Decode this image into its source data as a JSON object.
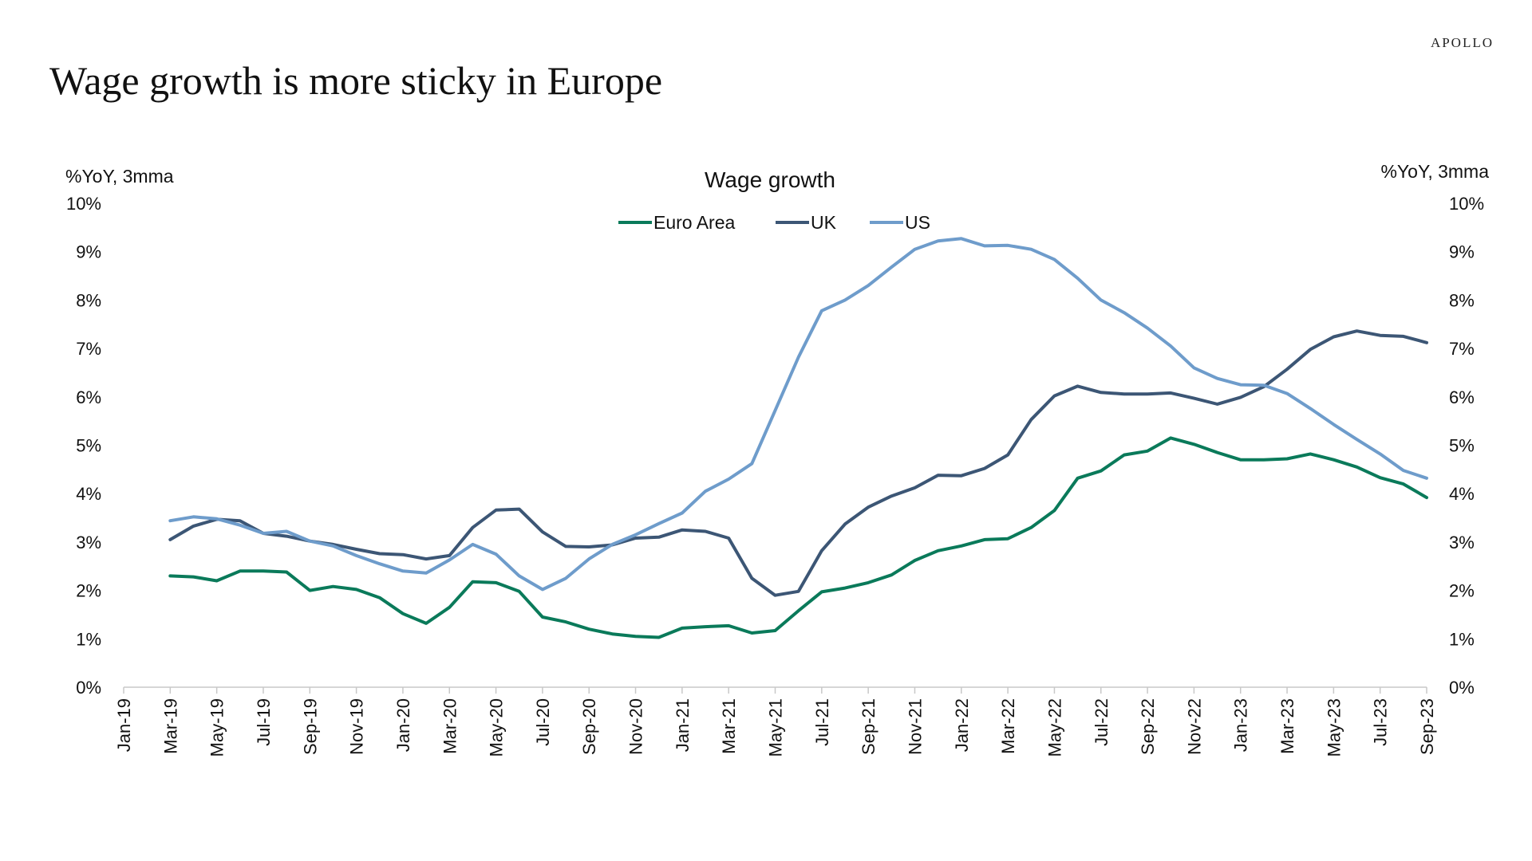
{
  "brand": "APOLLO",
  "page_title": "Wage growth is more sticky in Europe",
  "colors": {
    "Euro Area": "#0a7a5a",
    "UK": "#3c5675",
    "US": "#6e9ccb"
  },
  "chart_data": {
    "type": "line",
    "title": "Wage growth",
    "ylabel_left": "%YoY, 3mma",
    "ylabel_right": "%YoY, 3mma",
    "ylim": [
      0,
      10
    ],
    "y_ticks": [
      "0%",
      "1%",
      "2%",
      "3%",
      "4%",
      "5%",
      "6%",
      "7%",
      "8%",
      "9%",
      "10%"
    ],
    "x_start": "Jan-19",
    "x_ticks": [
      "Jan-19",
      "Mar-19",
      "May-19",
      "Jul-19",
      "Sep-19",
      "Nov-19",
      "Jan-20",
      "Mar-20",
      "May-20",
      "Jul-20",
      "Sep-20",
      "Nov-20",
      "Jan-21",
      "Mar-21",
      "May-21",
      "Jul-21",
      "Sep-21",
      "Nov-21",
      "Jan-22",
      "Mar-22",
      "May-22",
      "Jul-22",
      "Sep-22",
      "Nov-22",
      "Jan-23",
      "Mar-23",
      "May-23",
      "Jul-23",
      "Sep-23"
    ],
    "legend_position": "top-center",
    "series": [
      {
        "name": "Euro Area",
        "start": "Mar-19",
        "values": [
          2.3,
          2.28,
          2.2,
          2.4,
          2.4,
          2.38,
          2.0,
          2.08,
          2.02,
          1.85,
          1.52,
          1.32,
          1.65,
          2.18,
          2.16,
          1.98,
          1.45,
          1.35,
          1.2,
          1.1,
          1.05,
          1.03,
          1.22,
          1.25,
          1.27,
          1.12,
          1.17,
          1.58,
          1.97,
          2.05,
          2.16,
          2.32,
          2.62,
          2.82,
          2.92,
          3.05,
          3.07,
          3.3,
          3.65,
          4.32,
          4.47,
          4.8,
          4.88,
          5.15,
          5.02,
          4.85,
          4.7,
          4.7,
          4.72,
          4.82,
          4.7,
          4.55,
          4.33,
          4.2,
          3.92
        ]
      },
      {
        "name": "UK",
        "start": "Mar-19",
        "values": [
          3.05,
          3.33,
          3.47,
          3.44,
          3.18,
          3.12,
          3.02,
          2.95,
          2.85,
          2.76,
          2.74,
          2.65,
          2.72,
          3.3,
          3.66,
          3.68,
          3.21,
          2.91,
          2.9,
          2.94,
          3.08,
          3.1,
          3.25,
          3.22,
          3.08,
          2.25,
          1.9,
          1.98,
          2.82,
          3.37,
          3.72,
          3.95,
          4.12,
          4.38,
          4.37,
          4.52,
          4.8,
          5.53,
          6.02,
          6.22,
          6.09,
          6.06,
          6.06,
          6.08,
          5.97,
          5.85,
          5.99,
          6.21,
          6.57,
          6.98,
          7.24,
          7.36,
          7.27,
          7.25,
          7.12
        ]
      },
      {
        "name": "US",
        "start": "Mar-19",
        "values": [
          3.44,
          3.52,
          3.48,
          3.35,
          3.18,
          3.22,
          3.02,
          2.92,
          2.72,
          2.55,
          2.4,
          2.36,
          2.63,
          2.95,
          2.75,
          2.3,
          2.02,
          2.25,
          2.65,
          2.95,
          3.15,
          3.38,
          3.6,
          4.05,
          4.3,
          4.62,
          5.72,
          6.82,
          7.78,
          8.0,
          8.3,
          8.68,
          9.05,
          9.22,
          9.27,
          9.12,
          9.13,
          9.05,
          8.84,
          8.45,
          8.0,
          7.74,
          7.42,
          7.05,
          6.6,
          6.38,
          6.25,
          6.24,
          6.07,
          5.76,
          5.43,
          5.12,
          4.82,
          4.48,
          4.32
        ]
      }
    ]
  }
}
